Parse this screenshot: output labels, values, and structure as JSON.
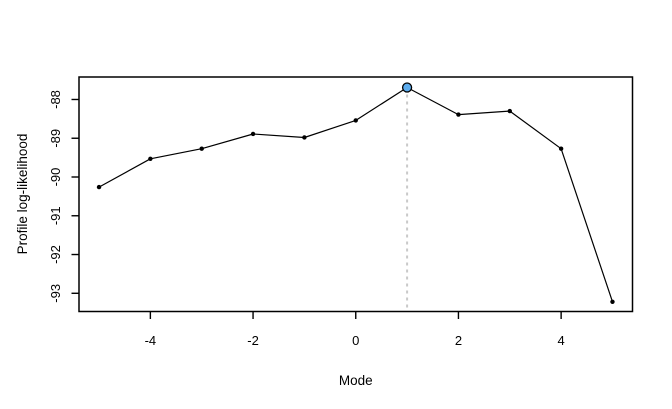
{
  "window": {
    "background": "#ffffff"
  },
  "chart_data": {
    "type": "line",
    "title": "",
    "xlabel": "Mode",
    "ylabel": "Profile log-likelihood",
    "x": [
      -5,
      -4,
      -3,
      -2,
      -1,
      0,
      1,
      2,
      3,
      4,
      5
    ],
    "y": [
      -90.26,
      -89.53,
      -89.27,
      -88.89,
      -88.98,
      -88.54,
      -87.69,
      -88.39,
      -88.3,
      -89.27,
      -93.22
    ],
    "x_ticks": [
      -4,
      -2,
      0,
      2,
      4
    ],
    "x_tick_labels": [
      "-4",
      "-2",
      "0",
      "2",
      "4"
    ],
    "y_ticks": [
      -88,
      -89,
      -90,
      -91,
      -92,
      -93
    ],
    "y_tick_labels": [
      "-88",
      "-89",
      "-90",
      "-91",
      "-92",
      "-93"
    ],
    "xlim": [
      -5.39,
      5.39
    ],
    "ylim": [
      -93.47,
      -87.42
    ],
    "grid": false,
    "legend_position": "none",
    "colors": {
      "line": "#000000",
      "points": "#000000",
      "box": "#000000",
      "text": "#000000",
      "vline": "#c9c9c9",
      "highlight_fill": "#5cacee",
      "highlight_stroke": "#000000"
    },
    "annotations": {
      "vline_x": 1,
      "vline_style": "dashed",
      "max_point": {
        "x": 1,
        "y": -87.69
      }
    }
  }
}
